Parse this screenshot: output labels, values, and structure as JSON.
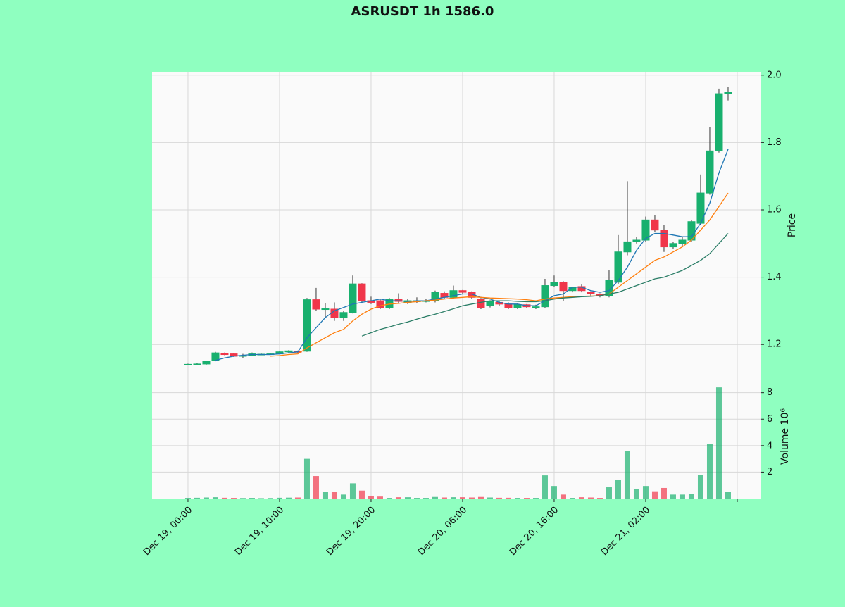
{
  "chart_data": {
    "type": "candlestick",
    "title": "ASRUSDT 1h 1586.0",
    "x": [
      "Dec 19, 00:00",
      "Dec 19, 01:00",
      "Dec 19, 02:00",
      "Dec 19, 03:00",
      "Dec 19, 04:00",
      "Dec 19, 05:00",
      "Dec 19, 06:00",
      "Dec 19, 07:00",
      "Dec 19, 08:00",
      "Dec 19, 09:00",
      "Dec 19, 10:00",
      "Dec 19, 11:00",
      "Dec 19, 12:00",
      "Dec 19, 13:00",
      "Dec 19, 14:00",
      "Dec 19, 15:00",
      "Dec 19, 16:00",
      "Dec 19, 17:00",
      "Dec 19, 18:00",
      "Dec 19, 19:00",
      "Dec 19, 20:00",
      "Dec 19, 21:00",
      "Dec 19, 22:00",
      "Dec 19, 23:00",
      "Dec 20, 00:00",
      "Dec 20, 01:00",
      "Dec 20, 02:00",
      "Dec 20, 03:00",
      "Dec 20, 04:00",
      "Dec 20, 05:00",
      "Dec 20, 06:00",
      "Dec 20, 07:00",
      "Dec 20, 08:00",
      "Dec 20, 09:00",
      "Dec 20, 10:00",
      "Dec 20, 11:00",
      "Dec 20, 12:00",
      "Dec 20, 13:00",
      "Dec 20, 14:00",
      "Dec 20, 15:00",
      "Dec 20, 16:00",
      "Dec 20, 17:00",
      "Dec 20, 18:00",
      "Dec 20, 19:00",
      "Dec 20, 20:00",
      "Dec 20, 21:00",
      "Dec 20, 22:00",
      "Dec 20, 23:00",
      "Dec 21, 00:00",
      "Dec 21, 01:00",
      "Dec 21, 02:00",
      "Dec 21, 03:00",
      "Dec 21, 04:00",
      "Dec 21, 05:00",
      "Dec 21, 06:00",
      "Dec 21, 07:00",
      "Dec 21, 08:00",
      "Dec 21, 09:00",
      "Dec 21, 10:00",
      "Dec 21, 11:00"
    ],
    "xlim": [
      -3.92,
      62.54
    ],
    "xticks": [
      0,
      10,
      20,
      30,
      40,
      50,
      60
    ],
    "open": [
      1.14,
      1.141,
      1.142,
      1.152,
      1.174,
      1.172,
      1.167,
      1.168,
      1.171,
      1.171,
      1.172,
      1.178,
      1.18,
      1.18,
      1.333,
      1.306,
      1.305,
      1.28,
      1.295,
      1.38,
      1.33,
      1.33,
      1.31,
      1.335,
      1.325,
      1.327,
      1.33,
      1.33,
      1.352,
      1.34,
      1.36,
      1.355,
      1.335,
      1.315,
      1.325,
      1.32,
      1.31,
      1.318,
      1.312,
      1.312,
      1.375,
      1.385,
      1.36,
      1.372,
      1.355,
      1.35,
      1.345,
      1.385,
      1.475,
      1.505,
      1.51,
      1.57,
      1.54,
      1.49,
      1.5,
      1.51,
      1.56,
      1.65,
      1.775,
      1.945
    ],
    "high": [
      1.143,
      1.144,
      1.152,
      1.178,
      1.176,
      1.174,
      1.172,
      1.176,
      1.173,
      1.174,
      1.18,
      1.183,
      1.182,
      1.338,
      1.368,
      1.322,
      1.325,
      1.3,
      1.405,
      1.382,
      1.342,
      1.335,
      1.338,
      1.352,
      1.335,
      1.34,
      1.336,
      1.36,
      1.358,
      1.375,
      1.362,
      1.358,
      1.338,
      1.33,
      1.328,
      1.325,
      1.322,
      1.32,
      1.318,
      1.395,
      1.405,
      1.388,
      1.372,
      1.378,
      1.358,
      1.352,
      1.42,
      1.525,
      1.685,
      1.52,
      1.58,
      1.585,
      1.555,
      1.505,
      1.52,
      1.57,
      1.705,
      1.845,
      1.96,
      1.965
    ],
    "low": [
      1.138,
      1.139,
      1.14,
      1.15,
      1.168,
      1.163,
      1.16,
      1.166,
      1.169,
      1.169,
      1.171,
      1.176,
      1.175,
      1.178,
      1.3,
      1.28,
      1.27,
      1.27,
      1.292,
      1.325,
      1.32,
      1.305,
      1.305,
      1.322,
      1.32,
      1.322,
      1.325,
      1.325,
      1.335,
      1.335,
      1.35,
      1.335,
      1.305,
      1.31,
      1.315,
      1.305,
      1.305,
      1.308,
      1.305,
      1.308,
      1.37,
      1.33,
      1.355,
      1.355,
      1.345,
      1.34,
      1.34,
      1.38,
      1.465,
      1.5,
      1.505,
      1.535,
      1.475,
      1.485,
      1.49,
      1.505,
      1.555,
      1.645,
      1.77,
      1.925
    ],
    "close": [
      1.141,
      1.142,
      1.15,
      1.175,
      1.17,
      1.165,
      1.167,
      1.172,
      1.171,
      1.172,
      1.178,
      1.181,
      1.177,
      1.333,
      1.305,
      1.306,
      1.28,
      1.295,
      1.38,
      1.33,
      1.325,
      1.31,
      1.335,
      1.328,
      1.33,
      1.33,
      1.33,
      1.355,
      1.34,
      1.36,
      1.355,
      1.34,
      1.31,
      1.328,
      1.32,
      1.31,
      1.318,
      1.312,
      1.312,
      1.375,
      1.385,
      1.36,
      1.37,
      1.36,
      1.35,
      1.345,
      1.39,
      1.475,
      1.505,
      1.51,
      1.57,
      1.54,
      1.49,
      1.5,
      1.51,
      1.565,
      1.65,
      1.775,
      1.945,
      1.95
    ],
    "up_color": "#18b06e",
    "down_color": "#f0364a",
    "ylim": [
      1.1,
      2.01
    ],
    "yticks": [
      1.2,
      1.4,
      1.6,
      1.8,
      {
        "value": 2.0,
        "label": "2.0"
      }
    ],
    "ylabel": "Price",
    "grid": true,
    "mav": [
      {
        "color": "#1f77b4",
        "values": [
          null,
          null,
          null,
          1.153,
          1.16,
          1.165,
          1.168,
          1.17,
          1.17,
          1.17,
          1.172,
          1.175,
          1.178,
          1.22,
          1.25,
          1.28,
          1.3,
          1.31,
          1.32,
          1.325,
          1.33,
          1.335,
          1.33,
          1.33,
          1.328,
          1.33,
          1.33,
          1.335,
          1.34,
          1.345,
          1.35,
          1.35,
          1.34,
          1.335,
          1.325,
          1.32,
          1.32,
          1.315,
          1.315,
          1.33,
          1.345,
          1.35,
          1.37,
          1.37,
          1.36,
          1.355,
          1.36,
          1.39,
          1.43,
          1.48,
          1.515,
          1.53,
          1.53,
          1.525,
          1.52,
          1.52,
          1.56,
          1.62,
          1.71,
          1.78
        ]
      },
      {
        "color": "#ff7f0e",
        "values": [
          null,
          null,
          null,
          null,
          null,
          null,
          null,
          null,
          null,
          1.165,
          1.167,
          1.17,
          1.172,
          1.19,
          1.205,
          1.22,
          1.235,
          1.245,
          1.27,
          1.29,
          1.305,
          1.315,
          1.32,
          1.322,
          1.325,
          1.327,
          1.33,
          1.332,
          1.335,
          1.338,
          1.34,
          1.342,
          1.34,
          1.338,
          1.337,
          1.336,
          1.335,
          1.333,
          1.33,
          1.335,
          1.338,
          1.34,
          1.342,
          1.343,
          1.344,
          1.345,
          1.35,
          1.37,
          1.39,
          1.41,
          1.43,
          1.45,
          1.46,
          1.475,
          1.49,
          1.51,
          1.54,
          1.57,
          1.61,
          1.65
        ]
      },
      {
        "color": "#2a7d66",
        "values": [
          null,
          null,
          null,
          null,
          null,
          null,
          null,
          null,
          null,
          null,
          null,
          null,
          null,
          null,
          null,
          null,
          null,
          null,
          null,
          1.225,
          1.235,
          1.245,
          1.252,
          1.26,
          1.267,
          1.275,
          1.283,
          1.29,
          1.298,
          1.306,
          1.315,
          1.32,
          1.325,
          1.33,
          1.33,
          1.33,
          1.328,
          1.327,
          1.327,
          1.33,
          1.335,
          1.338,
          1.34,
          1.342,
          1.343,
          1.345,
          1.35,
          1.355,
          1.365,
          1.375,
          1.385,
          1.395,
          1.4,
          1.41,
          1.42,
          1.435,
          1.45,
          1.47,
          1.5,
          1.53
        ]
      }
    ],
    "volume": {
      "ylabel": "Volume  10⁶",
      "ylim": [
        0,
        9.1
      ],
      "yticks": [
        2,
        4,
        6,
        8
      ],
      "values": [
        0.05,
        0.06,
        0.08,
        0.1,
        0.06,
        0.05,
        0.04,
        0.05,
        0.03,
        0.04,
        0.06,
        0.07,
        0.08,
        3.0,
        1.7,
        0.5,
        0.5,
        0.3,
        1.15,
        0.6,
        0.2,
        0.15,
        0.05,
        0.1,
        0.1,
        0.05,
        0.05,
        0.12,
        0.08,
        0.1,
        0.1,
        0.08,
        0.12,
        0.08,
        0.06,
        0.06,
        0.05,
        0.05,
        0.05,
        1.75,
        0.95,
        0.3,
        0.05,
        0.1,
        0.08,
        0.05,
        0.85,
        1.4,
        3.6,
        0.7,
        0.95,
        0.55,
        0.8,
        0.3,
        0.3,
        0.35,
        1.8,
        4.1,
        8.4,
        0.5
      ]
    }
  }
}
